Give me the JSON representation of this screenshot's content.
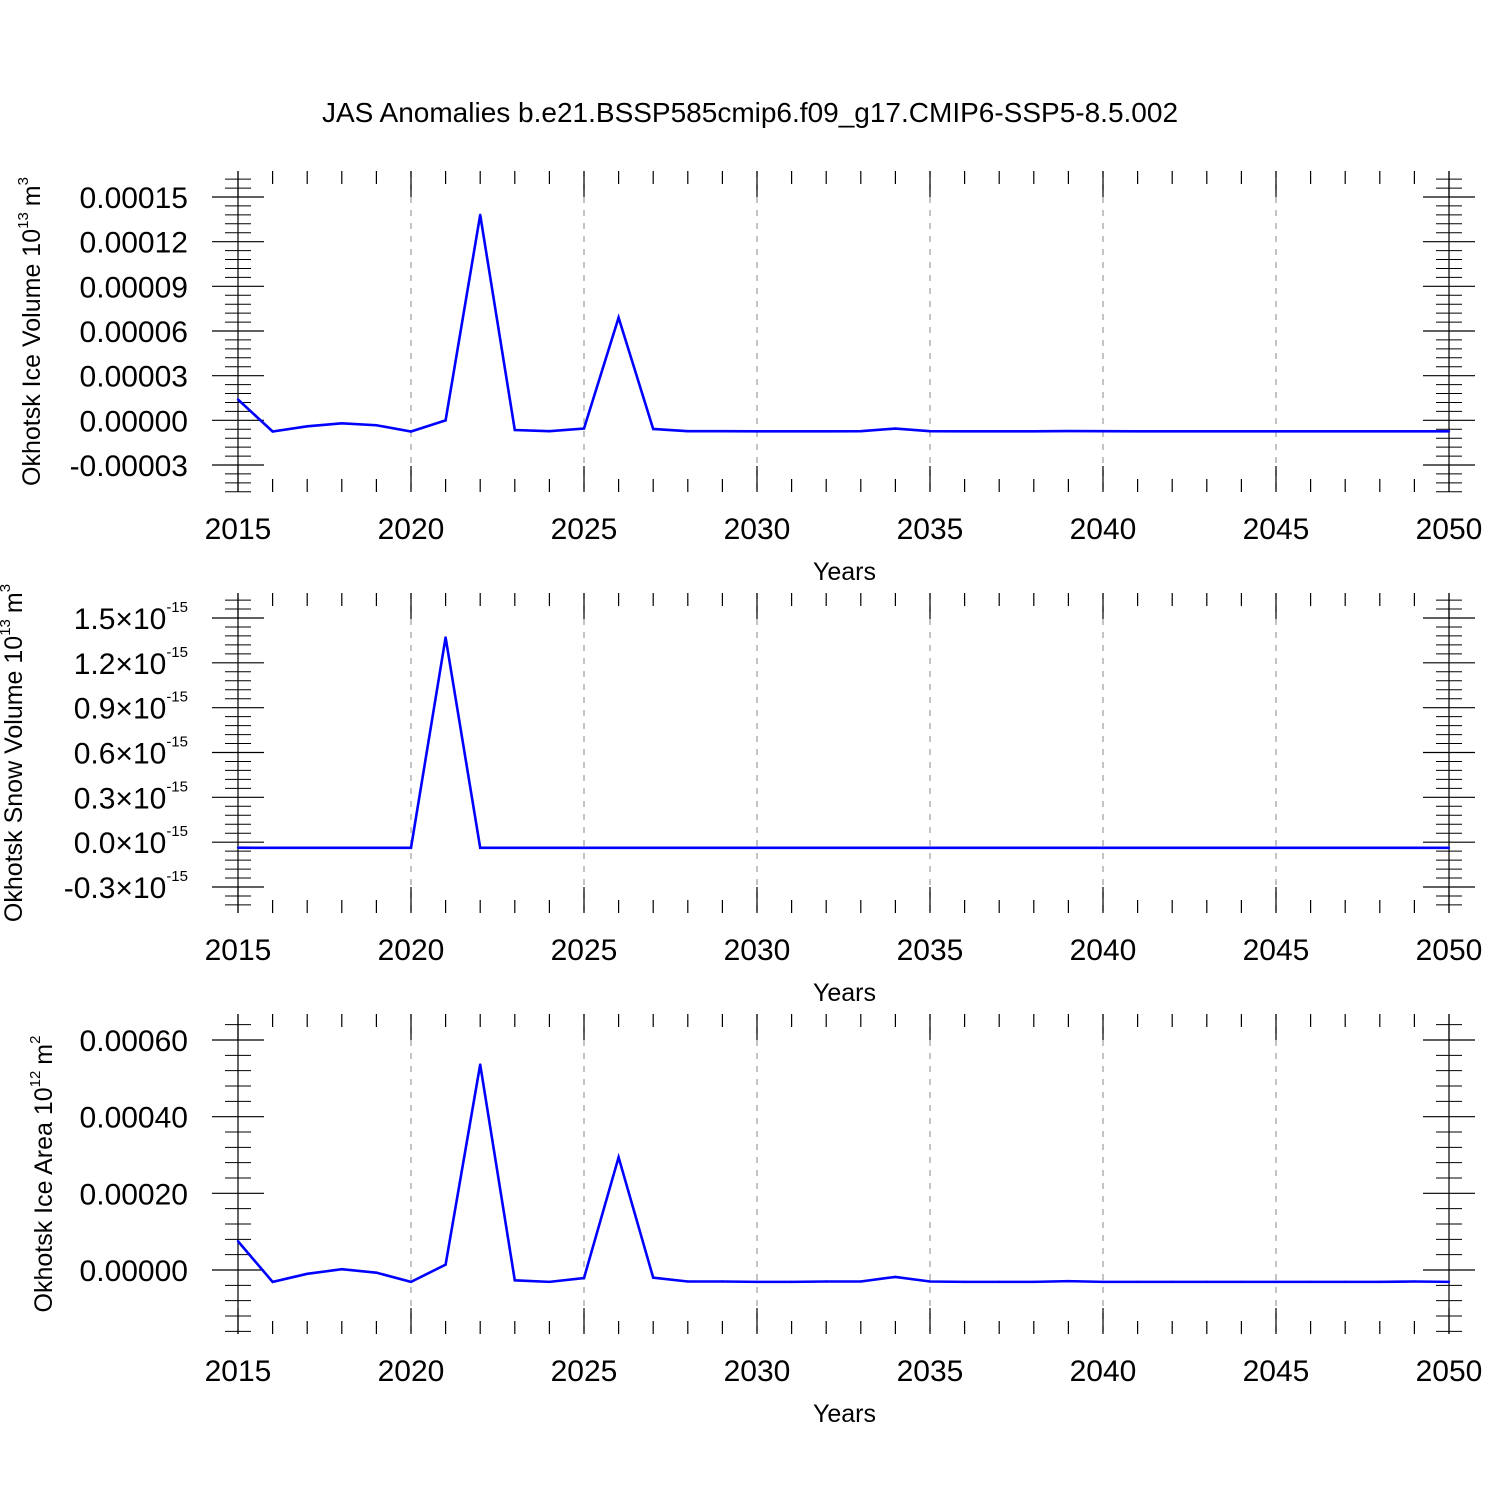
{
  "chart_data": {
    "type": "line",
    "title": "JAS Anomalies b.e21.BSSP585cmip6.f09_g17.CMIP6-SSP5-8.5.002",
    "series_color": "#0000ff",
    "grid": "vertical dashed at major x ticks",
    "panels": [
      {
        "id": "ice-volume",
        "ylabel": "Okhotsk Ice Volume 10",
        "ylabel_exp": "13",
        "ylabel_unit": "m",
        "ylabel_unit_exp": "3",
        "xlabel": "Years",
        "xlim": [
          2015,
          2050
        ],
        "ylim": [
          -3e-05,
          0.00015
        ],
        "xticks": [
          "2015",
          "2020",
          "2025",
          "2030",
          "2035",
          "2040",
          "2045",
          "2050"
        ],
        "yticks": [
          {
            "value": 0.00015,
            "label": "0.00015"
          },
          {
            "value": 0.00012,
            "label": "0.00012"
          },
          {
            "value": 9e-05,
            "label": "0.00009"
          },
          {
            "value": 6e-05,
            "label": "0.00006"
          },
          {
            "value": 3e-05,
            "label": "0.00003"
          },
          {
            "value": 0.0,
            "label": "0.00000"
          },
          {
            "value": -3e-05,
            "label": "-0.00003"
          }
        ],
        "x": [
          2015,
          2016,
          2017,
          2018,
          2019,
          2020,
          2021,
          2022,
          2023,
          2024,
          2025,
          2026,
          2027,
          2028,
          2029,
          2030,
          2031,
          2032,
          2033,
          2034,
          2035,
          2036,
          2037,
          2038,
          2039,
          2040,
          2041,
          2042,
          2043,
          2044,
          2045,
          2046,
          2047,
          2048,
          2049,
          2050
        ],
        "values": [
          1.4e-05,
          -7.5e-06,
          -4e-06,
          -2e-06,
          -3.3e-06,
          -7.5e-06,
          0.0,
          0.000138,
          -6.5e-06,
          -7.3e-06,
          -5.5e-06,
          6.9e-05,
          -5.8e-06,
          -7.3e-06,
          -7.3e-06,
          -7.4e-06,
          -7.4e-06,
          -7.4e-06,
          -7.3e-06,
          -5.5e-06,
          -7.3e-06,
          -7.4e-06,
          -7.4e-06,
          -7.4e-06,
          -7.2e-06,
          -7.3e-06,
          -7.4e-06,
          -7.4e-06,
          -7.4e-06,
          -7.4e-06,
          -7.4e-06,
          -7.4e-06,
          -7.4e-06,
          -7.4e-06,
          -7.4e-06,
          -7.4e-06
        ]
      },
      {
        "id": "snow-volume",
        "ylabel": "Okhotsk Snow Volume 10",
        "ylabel_exp": "13",
        "ylabel_unit": "m",
        "ylabel_unit_exp": "3",
        "xlabel": "Years",
        "xlim": [
          2015,
          2050
        ],
        "ylim": [
          -3e-16,
          1.5e-15
        ],
        "xticks": [
          "2015",
          "2020",
          "2025",
          "2030",
          "2035",
          "2040",
          "2045",
          "2050"
        ],
        "yticks": [
          {
            "value": 1.5e-15,
            "label": "1.5",
            "times": "×",
            "base": "10",
            "exp": "-15"
          },
          {
            "value": 1.2e-15,
            "label": "1.2",
            "times": "×",
            "base": "10",
            "exp": "-15"
          },
          {
            "value": 9e-16,
            "label": "0.9",
            "times": "×",
            "base": "10",
            "exp": "-15"
          },
          {
            "value": 6e-16,
            "label": "0.6",
            "times": "×",
            "base": "10",
            "exp": "-15"
          },
          {
            "value": 3e-16,
            "label": "0.3",
            "times": "×",
            "base": "10",
            "exp": "-15"
          },
          {
            "value": 0,
            "label": "0.0",
            "times": "×",
            "base": "10",
            "exp": "-15"
          },
          {
            "value": -3e-16,
            "label": "-0.3",
            "times": "×",
            "base": "10",
            "exp": "-15"
          }
        ],
        "x": [
          2015,
          2016,
          2017,
          2018,
          2019,
          2020,
          2021,
          2022,
          2023,
          2024,
          2025,
          2026,
          2027,
          2028,
          2029,
          2030,
          2031,
          2032,
          2033,
          2034,
          2035,
          2036,
          2037,
          2038,
          2039,
          2040,
          2041,
          2042,
          2043,
          2044,
          2045,
          2046,
          2047,
          2048,
          2049,
          2050
        ],
        "values": [
          -3.7e-17,
          -3.8e-17,
          -3.8e-17,
          -3.8e-17,
          -3.8e-17,
          -3.8e-17,
          1.37e-15,
          -3.8e-17,
          -3.8e-17,
          -3.8e-17,
          -3.8e-17,
          -3.8e-17,
          -3.8e-17,
          -3.8e-17,
          -3.8e-17,
          -3.8e-17,
          -3.8e-17,
          -3.8e-17,
          -3.8e-17,
          -3.8e-17,
          -3.8e-17,
          -3.8e-17,
          -3.8e-17,
          -3.8e-17,
          -3.8e-17,
          -3.8e-17,
          -3.8e-17,
          -3.8e-17,
          -3.8e-17,
          -3.8e-17,
          -3.8e-17,
          -3.8e-17,
          -3.8e-17,
          -3.8e-17,
          -3.8e-17,
          -3.8e-17
        ]
      },
      {
        "id": "ice-area",
        "ylabel": "Okhotsk Ice Area 10",
        "ylabel_exp": "12",
        "ylabel_unit": "m",
        "ylabel_unit_exp": "2",
        "xlabel": "Years",
        "xlim": [
          2015,
          2050
        ],
        "ylim": [
          -0.0001,
          0.0006
        ],
        "xticks": [
          "2015",
          "2020",
          "2025",
          "2030",
          "2035",
          "2040",
          "2045",
          "2050"
        ],
        "yticks": [
          {
            "value": 0.0006,
            "label": "0.00060"
          },
          {
            "value": 0.0004,
            "label": "0.00040"
          },
          {
            "value": 0.0002,
            "label": "0.00020"
          },
          {
            "value": 0.0,
            "label": "0.00000"
          }
        ],
        "x": [
          2015,
          2016,
          2017,
          2018,
          2019,
          2020,
          2021,
          2022,
          2023,
          2024,
          2025,
          2026,
          2027,
          2028,
          2029,
          2030,
          2031,
          2032,
          2033,
          2034,
          2035,
          2036,
          2037,
          2038,
          2039,
          2040,
          2041,
          2042,
          2043,
          2044,
          2045,
          2046,
          2047,
          2048,
          2049,
          2050
        ],
        "values": [
          7.5e-05,
          -3.1e-05,
          -1e-05,
          2e-06,
          -7e-06,
          -3.1e-05,
          1.4e-05,
          0.000536,
          -2.7e-05,
          -3.1e-05,
          -2.1e-05,
          0.000294,
          -2e-05,
          -3e-05,
          -3e-05,
          -3.1e-05,
          -3.1e-05,
          -3e-05,
          -3e-05,
          -1.8e-05,
          -3e-05,
          -3.1e-05,
          -3.1e-05,
          -3.1e-05,
          -2.9e-05,
          -3.1e-05,
          -3.1e-05,
          -3.1e-05,
          -3.1e-05,
          -3.1e-05,
          -3.1e-05,
          -3.1e-05,
          -3.1e-05,
          -3.1e-05,
          -3e-05,
          -3.1e-05
        ]
      }
    ]
  }
}
